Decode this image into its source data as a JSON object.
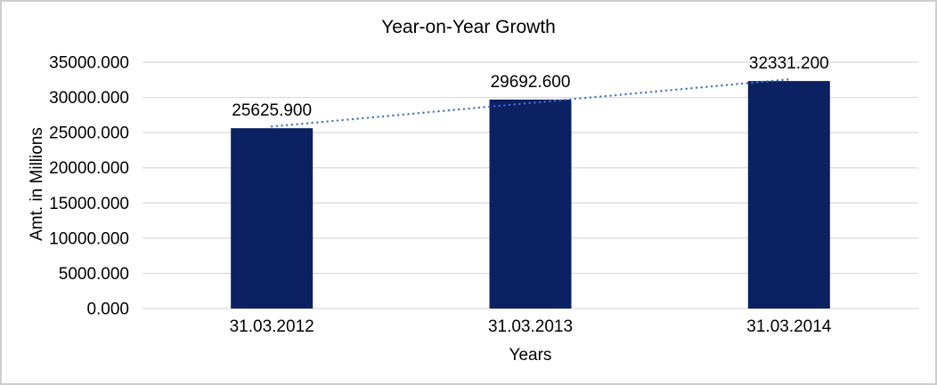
{
  "window": {
    "background_color": "#ffffff",
    "border_color": "#cdcdcd"
  },
  "chart_data": {
    "type": "bar",
    "title": "Year-on-Year Growth",
    "xlabel": "Years",
    "ylabel": "Amt. in Millions",
    "categories": [
      "31.03.2012",
      "31.03.2013",
      "31.03.2014"
    ],
    "values": [
      25625.9,
      29692.6,
      32331.2
    ],
    "value_labels": [
      "25625.900",
      "29692.600",
      "32331.200"
    ],
    "ylim": [
      0,
      35000
    ],
    "ytick_step": 5000,
    "ytick_labels": [
      "0.000",
      "5000.000",
      "10000.000",
      "15000.000",
      "20000.000",
      "25000.000",
      "30000.000",
      "35000.000"
    ],
    "grid": true,
    "legend_position": "none",
    "bar_color": "#0b2161",
    "gridline_color": "#d9d9d9",
    "text_color": "#000000",
    "trendline": {
      "type": "linear",
      "style": "dotted",
      "color": "#4472c4"
    }
  }
}
